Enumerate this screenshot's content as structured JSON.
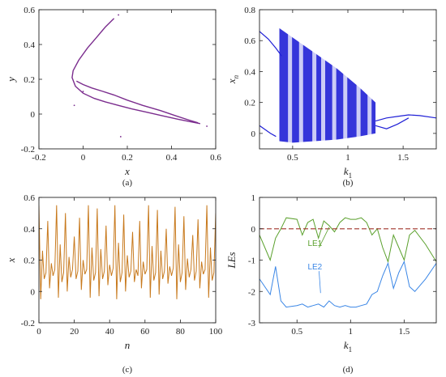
{
  "chart_data": [
    {
      "id": "a",
      "type": "scatter",
      "caption": "(a)",
      "xlabel": "x",
      "ylabel": "y",
      "xlim": [
        -0.2,
        0.6
      ],
      "ylim": [
        -0.2,
        0.6
      ],
      "xticks": [
        -0.2,
        0,
        0.2,
        0.4,
        0.6
      ],
      "yticks": [
        -0.2,
        0,
        0.2,
        0.4,
        0.6
      ],
      "color": "#7b2d8e",
      "series": [
        {
          "x": [
            0.14,
            0.1,
            0.06,
            0.02,
            -0.02,
            -0.045,
            -0.05,
            -0.035,
            0.0,
            0.05,
            0.1,
            0.16,
            0.22,
            0.29,
            0.36,
            0.43,
            0.49,
            0.53
          ],
          "y": [
            0.55,
            0.5,
            0.44,
            0.38,
            0.31,
            0.25,
            0.21,
            0.16,
            0.12,
            0.09,
            0.07,
            0.05,
            0.03,
            0.01,
            -0.01,
            -0.03,
            -0.045,
            -0.055
          ]
        },
        {
          "x": [
            -0.03,
            0.0,
            0.04,
            0.09,
            0.14,
            0.2,
            0.27,
            0.35,
            0.42,
            0.48,
            0.52
          ],
          "y": [
            0.19,
            0.17,
            0.15,
            0.13,
            0.11,
            0.08,
            0.05,
            0.02,
            -0.01,
            -0.035,
            -0.05
          ]
        }
      ],
      "points": {
        "x": [
          0.16,
          0.56,
          0.17,
          0.0,
          -0.04
        ],
        "y": [
          0.57,
          -0.07,
          -0.13,
          0.13,
          0.05
        ]
      }
    },
    {
      "id": "b",
      "type": "scatter",
      "caption": "(b)",
      "xlabel": "k1",
      "ylabel": "xn",
      "xlim": [
        0.2,
        1.8
      ],
      "ylim": [
        -0.1,
        0.8
      ],
      "xticks": [
        0.5,
        1,
        1.5
      ],
      "yticks": [
        0,
        0.2,
        0.4,
        0.6,
        0.8
      ],
      "color": "#1f1fd6",
      "upper_branch": {
        "x": [
          0.2,
          0.28,
          0.35,
          0.4
        ],
        "y": [
          0.66,
          0.61,
          0.55,
          0.5
        ]
      },
      "lower_branch": {
        "x": [
          0.2,
          0.3,
          0.35
        ],
        "y": [
          0.05,
          0.0,
          -0.02
        ]
      },
      "period_branch_upper": {
        "x": [
          1.25,
          1.35,
          1.45,
          1.55,
          1.65,
          1.8
        ],
        "y": [
          0.08,
          0.1,
          0.11,
          0.12,
          0.115,
          0.1
        ]
      },
      "period_branch_lower": {
        "x": [
          1.25,
          1.35,
          1.45,
          1.55
        ],
        "y": [
          0.05,
          0.03,
          0.06,
          0.1
        ]
      },
      "chaos_top": {
        "x": [
          0.38,
          0.5,
          0.7,
          0.9,
          1.1,
          1.25
        ],
        "y": [
          0.68,
          0.62,
          0.52,
          0.42,
          0.3,
          0.2
        ]
      },
      "chaos_bottom": {
        "x": [
          0.38,
          0.5,
          0.7,
          0.9,
          1.1,
          1.25
        ],
        "y": [
          -0.05,
          -0.06,
          -0.05,
          -0.04,
          -0.02,
          0.0
        ]
      },
      "windows": [
        0.48,
        0.58,
        0.7,
        0.78,
        0.88,
        0.98,
        1.1,
        1.2
      ]
    },
    {
      "id": "c",
      "type": "line",
      "caption": "(c)",
      "xlabel": "n",
      "ylabel": "x",
      "xlim": [
        0,
        100
      ],
      "ylim": [
        -0.2,
        0.6
      ],
      "xticks": [
        0,
        20,
        40,
        60,
        80,
        100
      ],
      "yticks": [
        -0.2,
        0,
        0.2,
        0.4,
        0.6
      ],
      "color": "#c87a1e",
      "values": [
        0.55,
        -0.05,
        0.26,
        0.08,
        0.12,
        0.45,
        0.02,
        0.18,
        0.1,
        0.14,
        0.55,
        -0.04,
        0.3,
        0.06,
        0.12,
        0.5,
        0.0,
        0.22,
        0.09,
        0.14,
        0.35,
        0.08,
        0.13,
        0.47,
        0.01,
        0.2,
        0.11,
        0.14,
        0.55,
        -0.04,
        0.28,
        0.07,
        0.12,
        0.53,
        -0.03,
        0.27,
        0.08,
        0.13,
        0.42,
        0.04,
        0.17,
        0.1,
        0.15,
        0.55,
        -0.05,
        0.31,
        0.06,
        0.12,
        0.49,
        0.0,
        0.23,
        0.09,
        0.13,
        0.38,
        0.06,
        0.14,
        0.1,
        0.45,
        0.02,
        0.19,
        0.11,
        0.14,
        0.55,
        -0.04,
        0.29,
        0.07,
        0.12,
        0.52,
        -0.02,
        0.26,
        0.08,
        0.13,
        0.4,
        0.05,
        0.16,
        0.1,
        0.15,
        0.54,
        -0.05,
        0.3,
        0.06,
        0.12,
        0.48,
        0.01,
        0.21,
        0.09,
        0.14,
        0.36,
        0.07,
        0.13,
        0.46,
        0.02,
        0.19,
        0.11,
        0.14,
        0.55,
        -0.04,
        0.28,
        0.07,
        0.12,
        0.5
      ]
    },
    {
      "id": "d",
      "type": "line",
      "caption": "(d)",
      "xlabel": "k1",
      "ylabel": "LEs",
      "xlim": [
        0.15,
        1.8
      ],
      "ylim": [
        -3,
        1
      ],
      "xticks": [
        0.5,
        1,
        1.5
      ],
      "yticks": [
        -3,
        -2,
        -1,
        0,
        1
      ],
      "series": [
        {
          "name": "LE1",
          "color": "#5aa02c",
          "x": [
            0.15,
            0.25,
            0.3,
            0.35,
            0.4,
            0.5,
            0.55,
            0.6,
            0.65,
            0.7,
            0.75,
            0.8,
            0.85,
            0.9,
            0.95,
            1.0,
            1.05,
            1.1,
            1.15,
            1.2,
            1.25,
            1.3,
            1.35,
            1.4,
            1.45,
            1.5,
            1.55,
            1.6,
            1.7,
            1.8
          ],
          "y": [
            -0.2,
            -1.0,
            -0.3,
            0.0,
            0.35,
            0.3,
            -0.2,
            0.2,
            0.3,
            -0.3,
            0.25,
            0.1,
            -0.1,
            0.2,
            0.35,
            0.3,
            0.3,
            0.35,
            0.2,
            -0.2,
            0.0,
            -0.6,
            -1.05,
            -0.2,
            -0.6,
            -1.0,
            -0.2,
            -0.05,
            -0.5,
            -1.05
          ]
        },
        {
          "name": "LE2",
          "color": "#3a86e6",
          "x": [
            0.15,
            0.25,
            0.3,
            0.35,
            0.4,
            0.5,
            0.55,
            0.6,
            0.65,
            0.7,
            0.75,
            0.8,
            0.85,
            0.9,
            0.95,
            1.0,
            1.05,
            1.1,
            1.15,
            1.2,
            1.25,
            1.3,
            1.35,
            1.4,
            1.45,
            1.5,
            1.55,
            1.6,
            1.7,
            1.8
          ],
          "y": [
            -1.6,
            -2.1,
            -1.2,
            -2.3,
            -2.5,
            -2.45,
            -2.4,
            -2.5,
            -2.45,
            -2.4,
            -2.5,
            -2.3,
            -2.45,
            -2.5,
            -2.45,
            -2.5,
            -2.5,
            -2.45,
            -2.4,
            -2.1,
            -2.0,
            -1.5,
            -1.1,
            -1.9,
            -1.4,
            -1.05,
            -1.85,
            -2.0,
            -1.6,
            -1.1
          ]
        },
        {
          "name": "zero",
          "color": "#a0342a",
          "dashed": true,
          "x": [
            0.15,
            1.8
          ],
          "y": [
            0,
            0
          ]
        }
      ],
      "annotations": [
        {
          "text": "LE1",
          "color": "#5aa02c",
          "x": 0.6,
          "y": -0.55,
          "tx": 0.8,
          "ty": 0.05
        },
        {
          "text": "LE2",
          "color": "#3a86e6",
          "x": 0.6,
          "y": -1.3,
          "tx": 0.72,
          "ty": -2.05
        }
      ]
    }
  ]
}
